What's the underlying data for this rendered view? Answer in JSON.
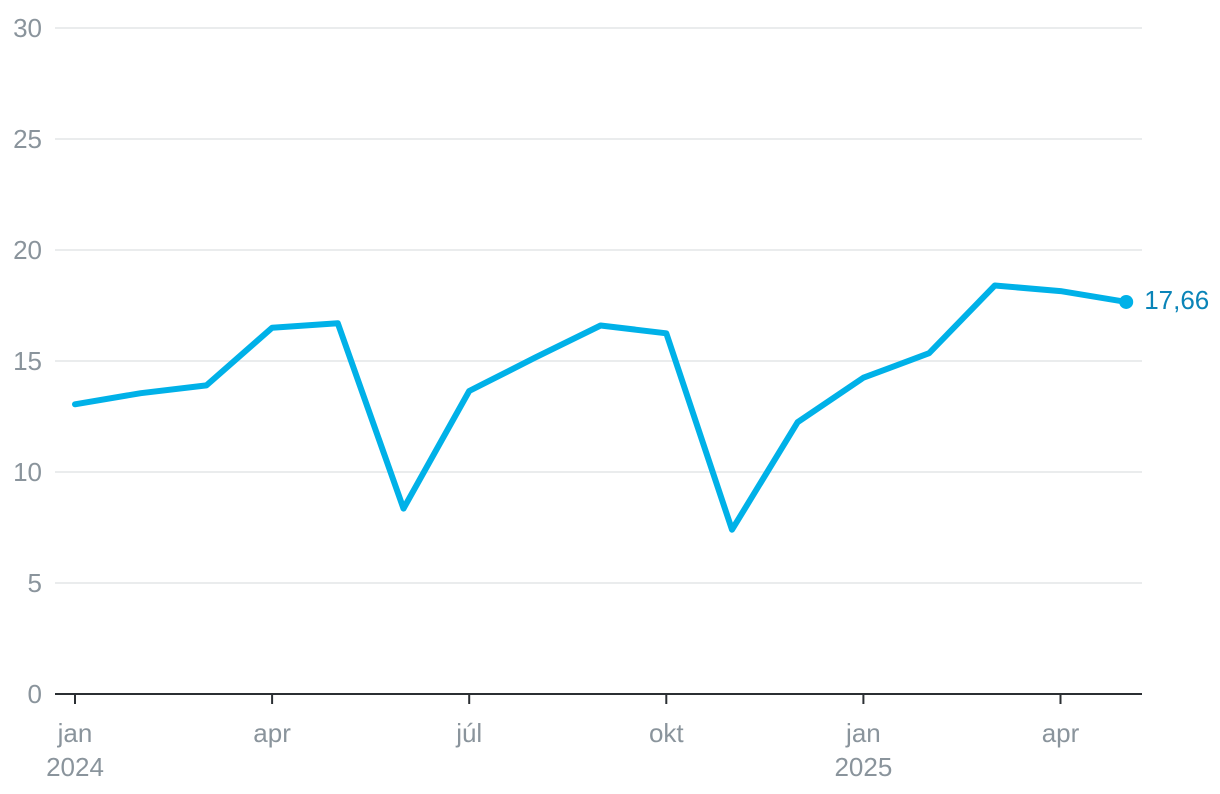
{
  "chart_data": {
    "type": "line",
    "title": "",
    "xlabel": "",
    "ylabel": "",
    "ylim": [
      0,
      30
    ],
    "y_ticks": [
      0,
      5,
      10,
      15,
      20,
      25,
      30
    ],
    "y_tick_labels": [
      "0",
      "5",
      "10",
      "15",
      "20",
      "25",
      "30"
    ],
    "grid": true,
    "x_tick_labels": [
      {
        "month": "jan",
        "year": "2024",
        "date": "2024-01"
      },
      {
        "month": "apr",
        "year": "",
        "date": "2024-04"
      },
      {
        "month": "júl",
        "year": "",
        "date": "2024-07"
      },
      {
        "month": "okt",
        "year": "",
        "date": "2024-10"
      },
      {
        "month": "jan",
        "year": "2025",
        "date": "2025-01"
      },
      {
        "month": "apr",
        "year": "",
        "date": "2025-04"
      }
    ],
    "x": [
      "2024-01",
      "2024-02",
      "2024-03",
      "2024-04",
      "2024-05",
      "2024-06",
      "2024-07",
      "2024-08",
      "2024-09",
      "2024-10",
      "2024-11",
      "2024-12",
      "2025-01",
      "2025-02",
      "2025-03",
      "2025-04",
      "2025-05"
    ],
    "series": [
      {
        "values": [
          13.05,
          13.55,
          13.9,
          16.5,
          16.7,
          8.35,
          13.65,
          15.15,
          16.6,
          16.25,
          7.4,
          12.25,
          14.25,
          15.35,
          18.4,
          18.15,
          17.66
        ],
        "color": "#00b1e8"
      }
    ],
    "end_label": "17,66",
    "end_label_color": "#0a84b8"
  }
}
